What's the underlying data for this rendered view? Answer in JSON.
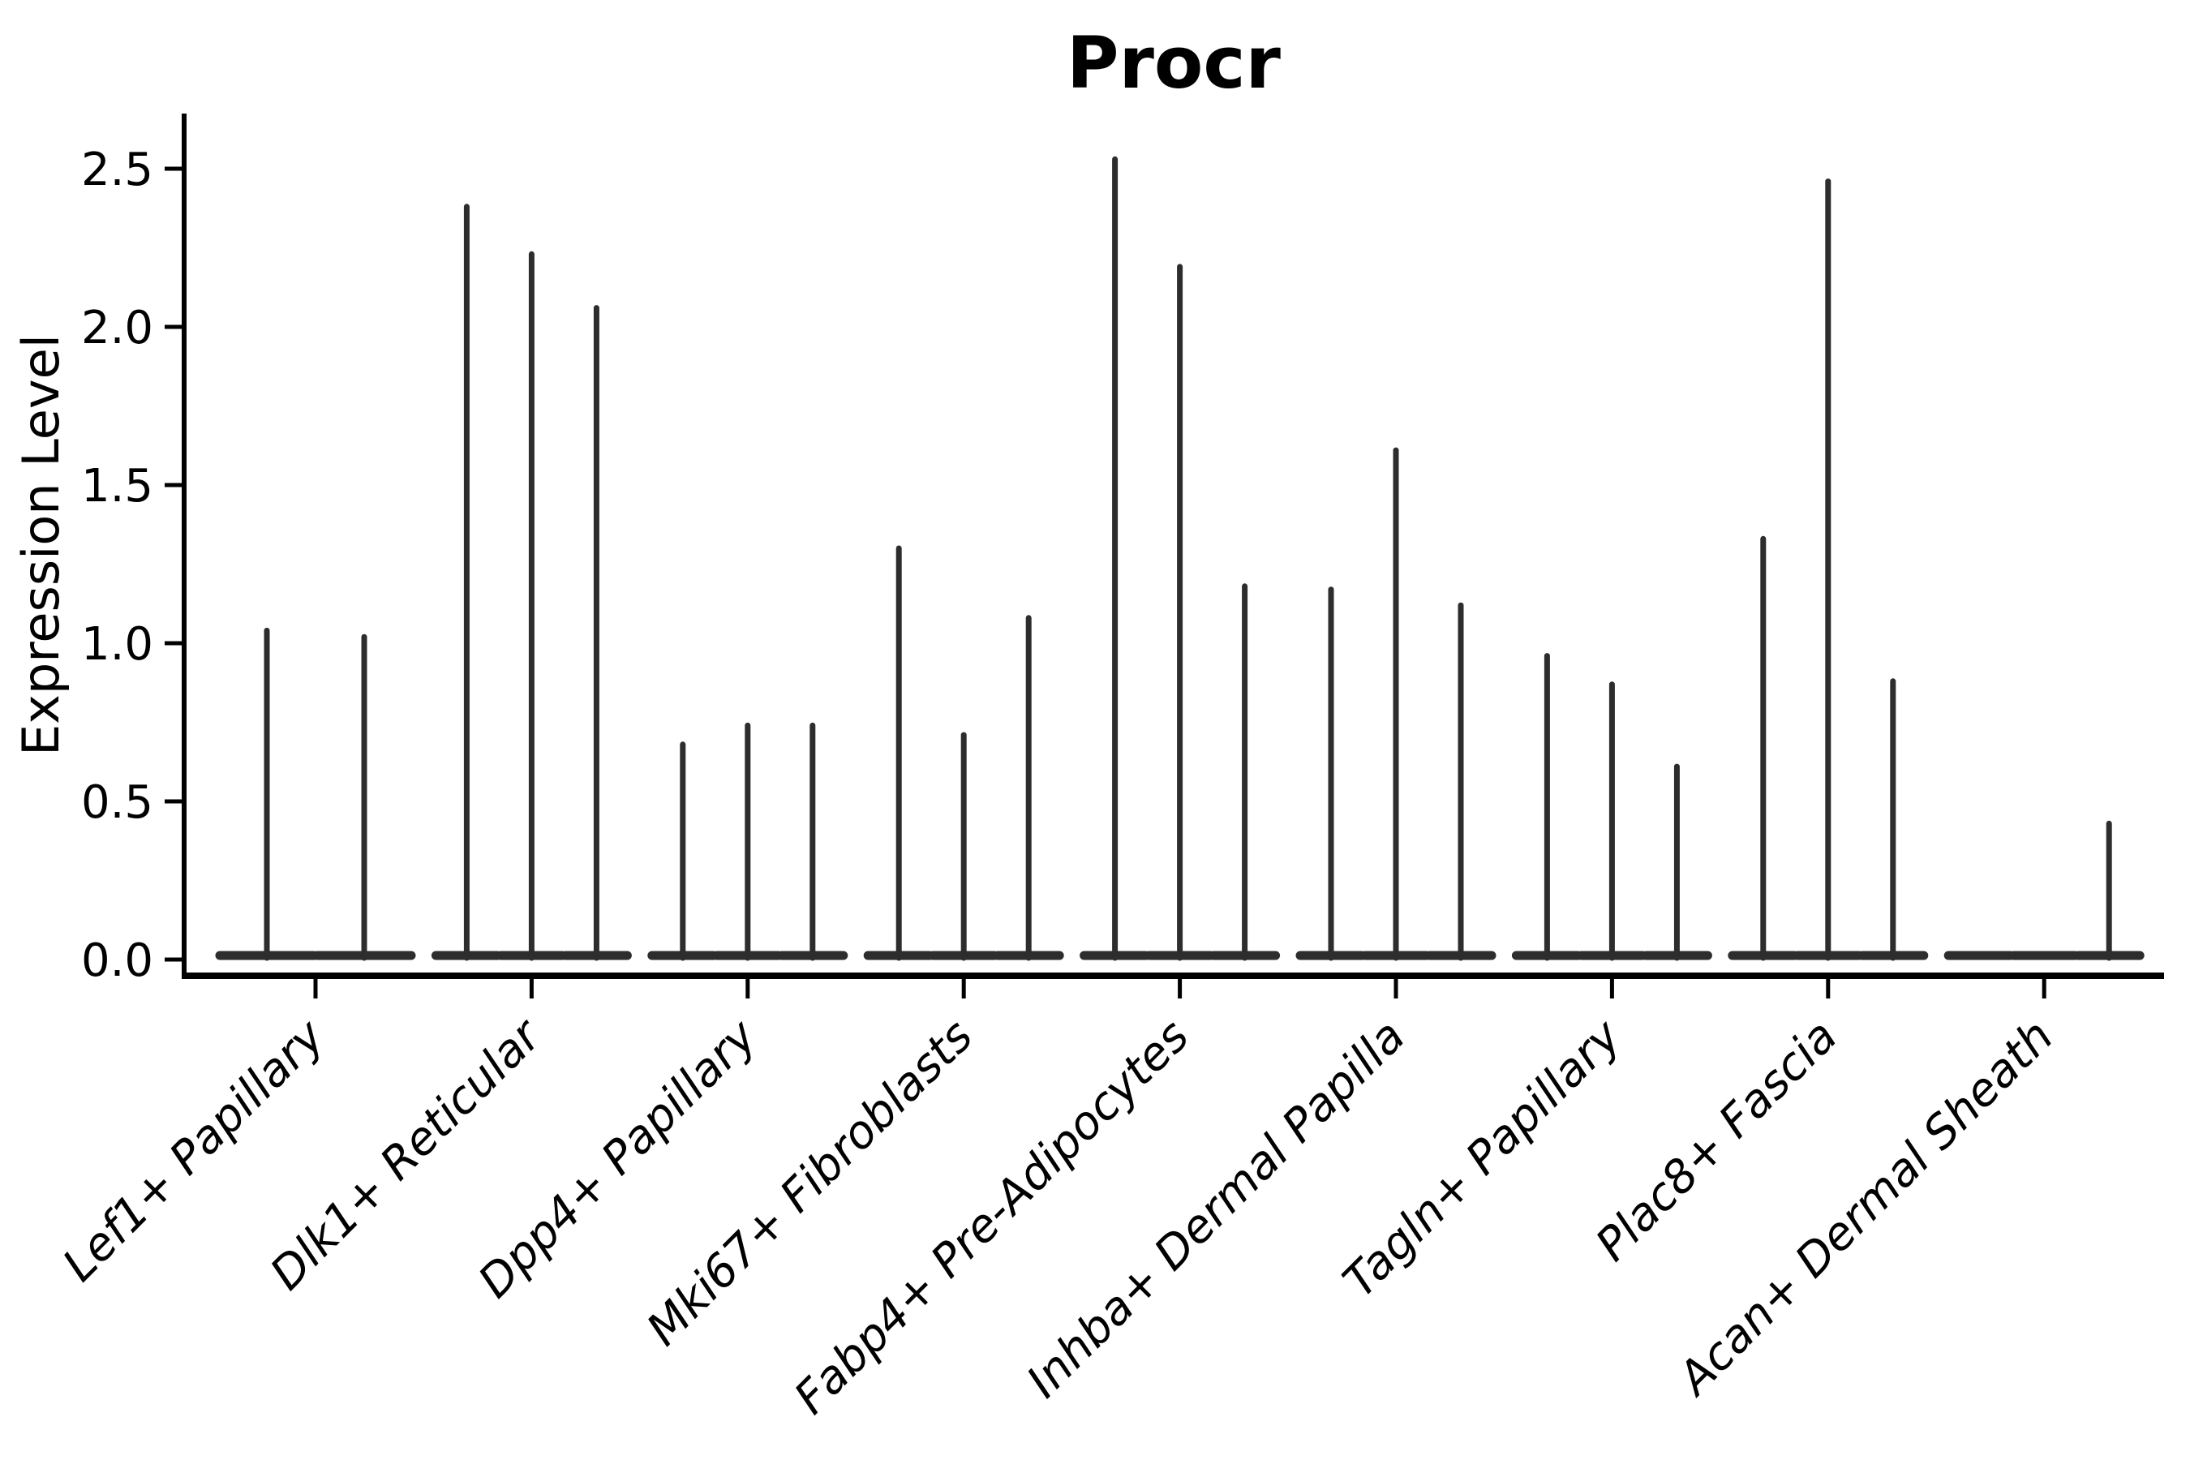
{
  "chart_data": {
    "type": "violin",
    "title": "Procr",
    "ylabel": "Expression Level",
    "xlabel": "",
    "yticks": [
      "0.0",
      "0.5",
      "1.0",
      "1.5",
      "2.0",
      "2.5"
    ],
    "ytick_values": [
      0.0,
      0.5,
      1.0,
      1.5,
      2.0,
      2.5
    ],
    "ylim": [
      -0.06,
      2.66
    ],
    "legend": "none",
    "grid": "off",
    "categories": [
      "Lef1+ Papillary",
      "Dlk1+ Reticular",
      "Dpp4+ Papillary",
      "Mki67+ Fibroblasts",
      "Fabp4+ Pre-Adipocytes",
      "Inhba+ Dermal Papilla",
      "Tagln+ Papillary",
      "Plac8+ Fascia",
      "Acan+ Dermal Sheath"
    ],
    "groups": [
      {
        "label": "Lef1+ Papillary",
        "violin_max": [
          1.04,
          1.02
        ]
      },
      {
        "label": "Dlk1+ Reticular",
        "violin_max": [
          2.38,
          2.23,
          2.06
        ]
      },
      {
        "label": "Dpp4+ Papillary",
        "violin_max": [
          0.68,
          0.74,
          0.74
        ]
      },
      {
        "label": "Mki67+ Fibroblasts",
        "violin_max": [
          1.3,
          0.71,
          1.08
        ]
      },
      {
        "label": "Fabp4+ Pre-Adipocytes",
        "violin_max": [
          2.53,
          2.19,
          1.18
        ]
      },
      {
        "label": "Inhba+ Dermal Papilla",
        "violin_max": [
          1.17,
          1.61,
          1.12
        ]
      },
      {
        "label": "Tagln+ Papillary",
        "violin_max": [
          0.96,
          0.87,
          0.61
        ]
      },
      {
        "label": "Plac8+ Fascia",
        "violin_max": [
          1.33,
          2.46,
          0.88
        ]
      },
      {
        "label": "Acan+ Dermal Sheath",
        "violin_max": [
          0.0,
          0.0,
          0.43
        ]
      }
    ],
    "colors": {
      "violin_stroke": "#2d2d2d",
      "axis": "#000000",
      "text": "#000000",
      "background": "#ffffff"
    }
  }
}
